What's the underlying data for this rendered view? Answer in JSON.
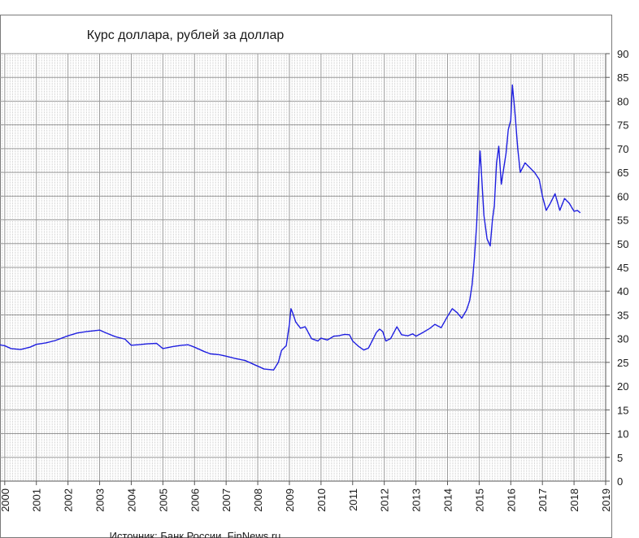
{
  "chart_data": {
    "type": "line",
    "title": "Курс доллара, рублей за доллар",
    "source": "Источник: Банк России, FinNews.ru",
    "xlabel": "",
    "ylabel": "",
    "xlim": [
      1999.85,
      2019.0
    ],
    "ylim": [
      0,
      90
    ],
    "x_ticks": [
      "2000",
      "2001",
      "2002",
      "2003",
      "2004",
      "2005",
      "2006",
      "2007",
      "2008",
      "2009",
      "2010",
      "2011",
      "2012",
      "2013",
      "2014",
      "2015",
      "2016",
      "2017",
      "2018",
      "2019"
    ],
    "y_ticks": [
      "0",
      "5",
      "10",
      "15",
      "20",
      "25",
      "30",
      "35",
      "40",
      "45",
      "50",
      "55",
      "60",
      "65",
      "70",
      "75",
      "80",
      "85",
      "90"
    ],
    "grid": true,
    "series": [
      {
        "color": "#1f1fe0",
        "x": [
          1999.85,
          2000.0,
          2000.2,
          2000.5,
          2000.8,
          2001.0,
          2001.3,
          2001.6,
          2002.0,
          2002.3,
          2002.6,
          2003.0,
          2003.2,
          2003.5,
          2003.8,
          2004.0,
          2004.2,
          2004.5,
          2004.8,
          2005.0,
          2005.3,
          2005.6,
          2005.8,
          2006.0,
          2006.3,
          2006.5,
          2006.8,
          2007.0,
          2007.3,
          2007.6,
          2007.9,
          2008.2,
          2008.5,
          2008.65,
          2008.75,
          2008.9,
          2009.0,
          2009.05,
          2009.1,
          2009.2,
          2009.35,
          2009.5,
          2009.7,
          2009.9,
          2010.0,
          2010.2,
          2010.4,
          2010.55,
          2010.75,
          2010.9,
          2011.0,
          2011.2,
          2011.35,
          2011.5,
          2011.6,
          2011.75,
          2011.85,
          2011.95,
          2012.05,
          2012.2,
          2012.4,
          2012.55,
          2012.75,
          2012.9,
          2013.0,
          2013.2,
          2013.45,
          2013.6,
          2013.8,
          2014.0,
          2014.15,
          2014.3,
          2014.45,
          2014.6,
          2014.7,
          2014.78,
          2014.85,
          2014.92,
          2014.96,
          2015.0,
          2015.03,
          2015.08,
          2015.15,
          2015.25,
          2015.35,
          2015.42,
          2015.48,
          2015.55,
          2015.62,
          2015.7,
          2015.78,
          2015.85,
          2015.92,
          2016.0,
          2016.05,
          2016.1,
          2016.15,
          2016.22,
          2016.3,
          2016.45,
          2016.6,
          2016.75,
          2016.9,
          2017.0,
          2017.12,
          2017.25,
          2017.4,
          2017.55,
          2017.7,
          2017.85,
          2018.0,
          2018.1,
          2018.2
        ],
        "y": [
          28.7,
          28.5,
          27.9,
          27.7,
          28.2,
          28.8,
          29.1,
          29.6,
          30.6,
          31.2,
          31.5,
          31.8,
          31.2,
          30.4,
          29.9,
          28.6,
          28.7,
          28.9,
          29.0,
          27.9,
          28.3,
          28.6,
          28.7,
          28.2,
          27.3,
          26.8,
          26.6,
          26.3,
          25.8,
          25.4,
          24.5,
          23.6,
          23.4,
          25.0,
          27.5,
          28.5,
          33.0,
          36.3,
          35.5,
          33.5,
          32.2,
          32.5,
          30.0,
          29.5,
          30.1,
          29.7,
          30.5,
          30.6,
          30.9,
          30.8,
          29.5,
          28.3,
          27.6,
          28.0,
          29.3,
          31.3,
          32.0,
          31.5,
          29.5,
          30.0,
          32.5,
          30.8,
          30.6,
          31.0,
          30.5,
          31.2,
          32.2,
          33.0,
          32.3,
          34.7,
          36.3,
          35.5,
          34.3,
          36.0,
          38.0,
          41.5,
          47.0,
          54.0,
          60.0,
          66.0,
          69.5,
          64.0,
          56.0,
          51.0,
          49.5,
          55.0,
          58.0,
          67.0,
          70.5,
          62.5,
          66.0,
          69.0,
          74.0,
          76.0,
          83.4,
          80.0,
          76.0,
          70.0,
          65.0,
          67.0,
          66.0,
          65.0,
          63.5,
          60.0,
          57.0,
          58.5,
          60.5,
          57.0,
          59.5,
          58.5,
          56.8,
          57.0,
          56.5
        ]
      }
    ]
  }
}
